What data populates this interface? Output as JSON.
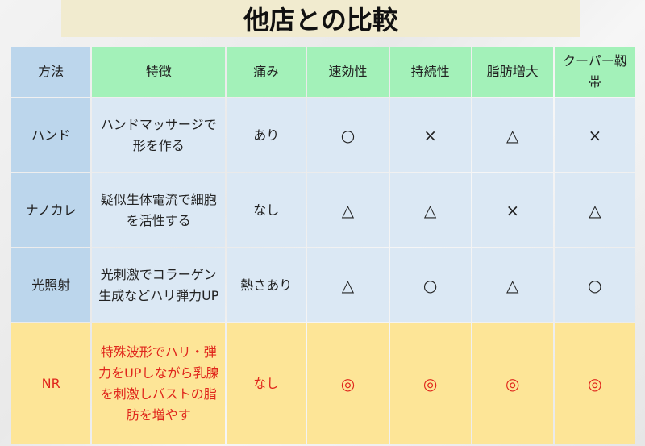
{
  "title": "他店との比較",
  "colors": {
    "header_green": "#a3f1b9",
    "method_blue": "#bcd6ec",
    "row_blue": "#dbe8f4",
    "highlight_yellow": "#fde597",
    "highlight_text": "#e0261c"
  },
  "table": {
    "headers": [
      "方法",
      "特徴",
      "痛み",
      "速効性",
      "持続性",
      "脂肪増大",
      "クーパー靱帯"
    ],
    "rows": [
      {
        "cells": [
          "ハンド",
          "ハンドマッサージで形を作る",
          "あり",
          "○",
          "×",
          "△",
          "×"
        ]
      },
      {
        "cells": [
          "ナノカレ",
          "疑似生体電流で細胞を活性する",
          "なし",
          "△",
          "△",
          "×",
          "△"
        ]
      },
      {
        "cells": [
          "光照射",
          "光刺激でコラーゲン生成などハリ弾力UP",
          "熱さあり",
          "△",
          "○",
          "△",
          "○"
        ]
      },
      {
        "cells": [
          "NR",
          "特殊波形でハリ・弾力をUPしながら乳腺を刺激しバストの脂肪を増やす",
          "なし",
          "◎",
          "◎",
          "◎",
          "◎"
        ],
        "highlight": true
      }
    ]
  }
}
